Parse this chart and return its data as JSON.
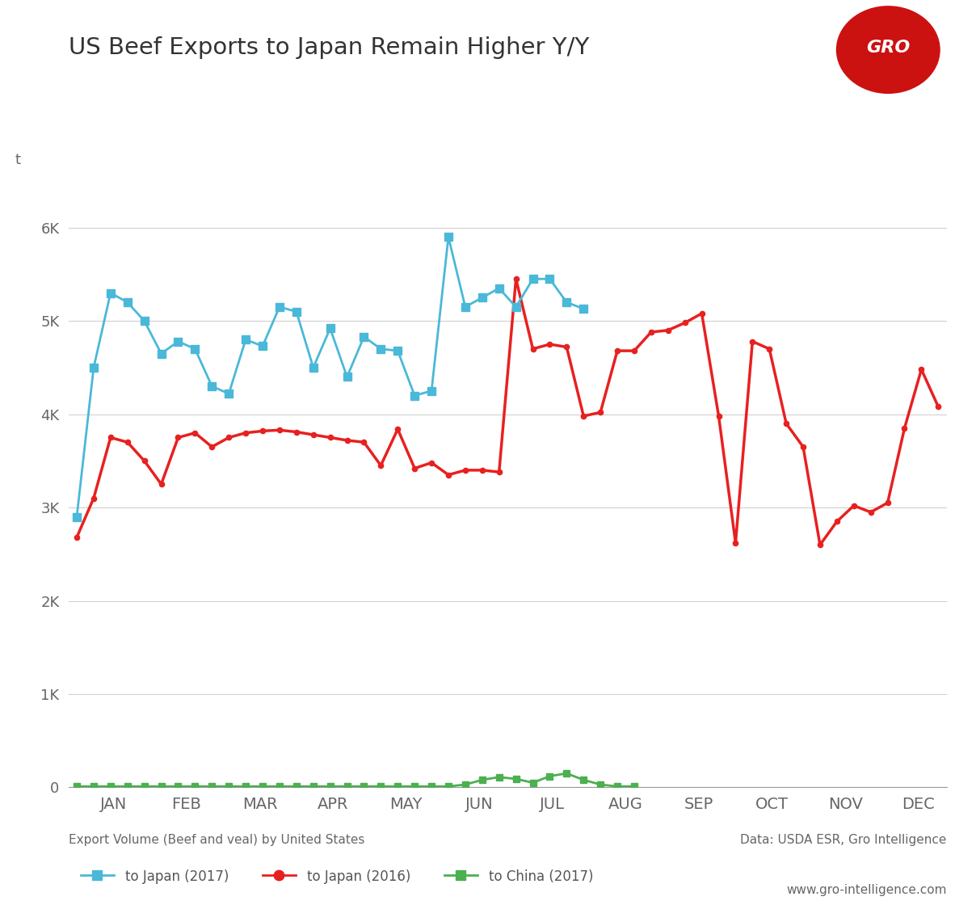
{
  "title": "US Beef Exports to Japan Remain Higher Y/Y",
  "ylabel": "t",
  "xlabel_caption": "Export Volume (Beef and veal) by United States",
  "source_caption": "Data: USDA ESR, Gro Intelligence",
  "website": "www.gro-intelligence.com",
  "background_color": "#ffffff",
  "grid_color": "#d0d0d0",
  "months": [
    "JAN",
    "FEB",
    "MAR",
    "APR",
    "MAY",
    "JUN",
    "JUL",
    "AUG",
    "SEP",
    "OCT",
    "NOV",
    "DEC"
  ],
  "japan_2017_y": [
    2900,
    4500,
    5300,
    5200,
    5000,
    4650,
    4780,
    4700,
    4300,
    4220,
    4800,
    4730,
    5150,
    5100,
    4500,
    4920,
    4400,
    4830,
    4700,
    4680,
    4200,
    4250,
    5900,
    5150,
    5250,
    5350,
    5150,
    5450,
    5450,
    5200,
    5130
  ],
  "japan_2016_y": [
    2680,
    3100,
    3750,
    3700,
    3500,
    3250,
    3750,
    3800,
    3650,
    3750,
    3800,
    3820,
    3830,
    3810,
    3780,
    3750,
    3720,
    3700,
    3450,
    3840,
    3420,
    3480,
    3350,
    3400,
    3400,
    3380,
    5450,
    4700,
    4750,
    4720,
    3980,
    4020,
    4680,
    4680,
    4880,
    4900,
    4980,
    5080,
    3980,
    2620,
    4780,
    4700,
    3900,
    3650,
    2600,
    2850,
    3020,
    2950,
    3050,
    3850,
    4480,
    4080
  ],
  "china_2017_y": [
    10,
    10,
    10,
    10,
    10,
    10,
    10,
    10,
    10,
    10,
    10,
    10,
    10,
    10,
    10,
    10,
    10,
    10,
    10,
    10,
    10,
    10,
    10,
    30,
    80,
    110,
    90,
    50,
    120,
    150,
    80,
    30,
    10,
    10
  ],
  "n_total": 52,
  "japan_2017_n": 31,
  "china_2017_n": 34,
  "ylim": [
    0,
    6500
  ],
  "yticks": [
    0,
    1000,
    2000,
    3000,
    4000,
    5000,
    6000
  ],
  "ytick_labels": [
    "0",
    "1K",
    "2K",
    "3K",
    "4K",
    "5K",
    "6K"
  ],
  "japan_2017_color": "#4ab8d8",
  "japan_2016_color": "#e82020",
  "china_2017_color": "#4caf50",
  "legend_japan2017": "to Japan (2017)",
  "legend_japan2016": "to Japan (2016)",
  "legend_china2017": "to China (2017)"
}
